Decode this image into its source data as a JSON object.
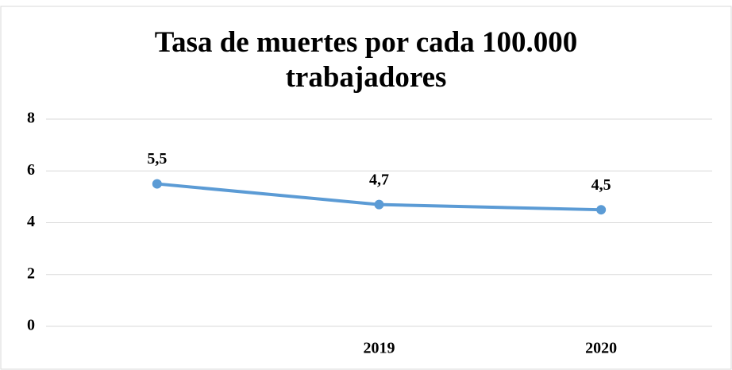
{
  "chart_data": {
    "type": "line",
    "title": "Tasa de muertes por cada 100.000 trabajadores",
    "categories": [
      null,
      "2019",
      "2020"
    ],
    "series": [
      {
        "name": null,
        "color": "#5b9bd5",
        "values": [
          5.5,
          4.7,
          4.5
        ],
        "value_labels": [
          "5,5",
          "4,7",
          "4,5"
        ]
      }
    ],
    "ylim": [
      0,
      8
    ],
    "yticks": [
      0,
      2,
      4,
      6,
      8
    ],
    "grid": true
  }
}
